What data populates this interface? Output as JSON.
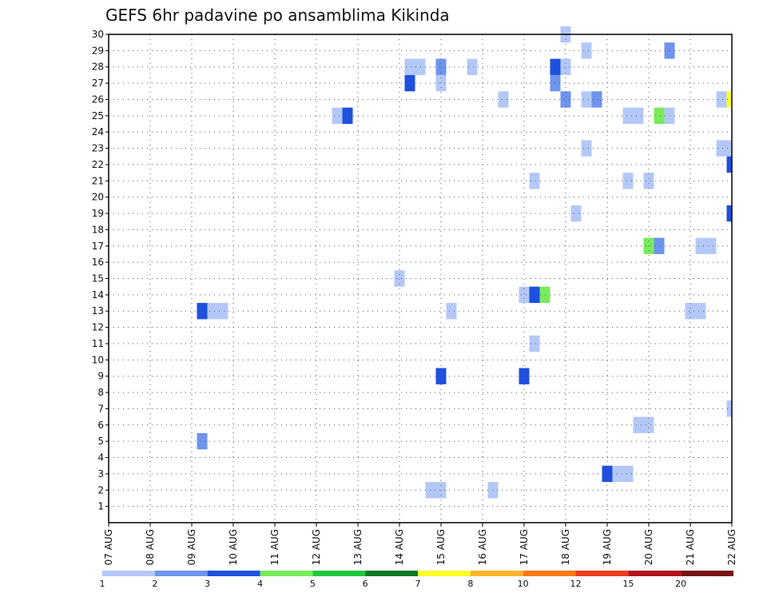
{
  "chart_data": {
    "type": "heatmap",
    "title": "GEFS 6hr padavine po ansamblima Kikinda",
    "xlabel": "",
    "ylabel": "",
    "x_ticks": [
      "07 AUG",
      "08 AUG",
      "09 AUG",
      "10 AUG",
      "11 AUG",
      "12 AUG",
      "13 AUG",
      "14 AUG",
      "15 AUG",
      "16 AUG",
      "17 AUG",
      "18 AUG",
      "19 AUG",
      "20 AUG",
      "21 AUG",
      "22 AUG"
    ],
    "xlim": [
      0,
      15
    ],
    "y_ticks": [
      1,
      2,
      3,
      4,
      5,
      6,
      7,
      8,
      9,
      10,
      11,
      12,
      13,
      14,
      15,
      16,
      17,
      18,
      19,
      20,
      21,
      22,
      23,
      24,
      25,
      26,
      27,
      28,
      29,
      30
    ],
    "ylim": [
      0,
      30
    ],
    "grid": true,
    "legend_position": "bottom",
    "color_scale": {
      "labels": [
        "1",
        "2",
        "3",
        "4",
        "5",
        "6",
        "7",
        "8",
        "10",
        "12",
        "15",
        "20"
      ],
      "colors": [
        "#b4c8f8",
        "#6e94ee",
        "#1e50e0",
        "#78eb5a",
        "#1ec83c",
        "#0f7823",
        "#ffff28",
        "#ffb428",
        "#ff7814",
        "#f03c1e",
        "#b4141e",
        "#781414"
      ]
    },
    "cells": [
      {
        "t": 11.0,
        "m": 30,
        "l": 0
      },
      {
        "t": 11.5,
        "m": 29,
        "l": 0
      },
      {
        "t": 13.5,
        "m": 29,
        "l": 1
      },
      {
        "t": 7.25,
        "m": 28,
        "l": 0
      },
      {
        "t": 7.5,
        "m": 28,
        "l": 0
      },
      {
        "t": 8.0,
        "m": 28,
        "l": 1
      },
      {
        "t": 8.75,
        "m": 28,
        "l": 0
      },
      {
        "t": 10.75,
        "m": 28,
        "l": 2
      },
      {
        "t": 11.0,
        "m": 28,
        "l": 0
      },
      {
        "t": 7.25,
        "m": 27,
        "l": 2
      },
      {
        "t": 8.0,
        "m": 27,
        "l": 0
      },
      {
        "t": 10.75,
        "m": 27,
        "l": 1
      },
      {
        "t": 9.5,
        "m": 26,
        "l": 0
      },
      {
        "t": 11.0,
        "m": 26,
        "l": 1
      },
      {
        "t": 11.5,
        "m": 26,
        "l": 0
      },
      {
        "t": 11.75,
        "m": 26,
        "l": 1
      },
      {
        "t": 14.75,
        "m": 26,
        "l": 0
      },
      {
        "t": 15.0,
        "m": 26,
        "l": 6
      },
      {
        "t": 5.5,
        "m": 25,
        "l": 0
      },
      {
        "t": 5.75,
        "m": 25,
        "l": 2
      },
      {
        "t": 12.5,
        "m": 25,
        "l": 0
      },
      {
        "t": 12.75,
        "m": 25,
        "l": 0
      },
      {
        "t": 13.25,
        "m": 25,
        "l": 3
      },
      {
        "t": 13.5,
        "m": 25,
        "l": 0
      },
      {
        "t": 11.5,
        "m": 23,
        "l": 0
      },
      {
        "t": 14.75,
        "m": 23,
        "l": 0
      },
      {
        "t": 15.0,
        "m": 23,
        "l": 0
      },
      {
        "t": 15.0,
        "m": 22,
        "l": 2
      },
      {
        "t": 10.25,
        "m": 21,
        "l": 0
      },
      {
        "t": 12.5,
        "m": 21,
        "l": 0
      },
      {
        "t": 13.0,
        "m": 21,
        "l": 0
      },
      {
        "t": 11.25,
        "m": 19,
        "l": 0
      },
      {
        "t": 15.0,
        "m": 19,
        "l": 2
      },
      {
        "t": 13.0,
        "m": 17,
        "l": 3
      },
      {
        "t": 13.25,
        "m": 17,
        "l": 1
      },
      {
        "t": 14.25,
        "m": 17,
        "l": 0
      },
      {
        "t": 14.5,
        "m": 17,
        "l": 0
      },
      {
        "t": 7.0,
        "m": 15,
        "l": 0
      },
      {
        "t": 10.0,
        "m": 14,
        "l": 0
      },
      {
        "t": 10.25,
        "m": 14,
        "l": 2
      },
      {
        "t": 10.5,
        "m": 14,
        "l": 3
      },
      {
        "t": 14.0,
        "m": 13,
        "l": 0
      },
      {
        "t": 14.25,
        "m": 13,
        "l": 0
      },
      {
        "t": 2.25,
        "m": 13,
        "l": 2
      },
      {
        "t": 2.5,
        "m": 13,
        "l": 0
      },
      {
        "t": 2.75,
        "m": 13,
        "l": 0
      },
      {
        "t": 8.25,
        "m": 13,
        "l": 0
      },
      {
        "t": 10.25,
        "m": 11,
        "l": 0
      },
      {
        "t": 8.0,
        "m": 9,
        "l": 2
      },
      {
        "t": 10.0,
        "m": 9,
        "l": 2
      },
      {
        "t": 15.0,
        "m": 7,
        "l": 0
      },
      {
        "t": 12.75,
        "m": 6,
        "l": 0
      },
      {
        "t": 13.0,
        "m": 6,
        "l": 0
      },
      {
        "t": 2.25,
        "m": 5,
        "l": 1
      },
      {
        "t": 12.0,
        "m": 3,
        "l": 2
      },
      {
        "t": 12.25,
        "m": 3,
        "l": 0
      },
      {
        "t": 12.5,
        "m": 3,
        "l": 0
      },
      {
        "t": 7.75,
        "m": 2,
        "l": 0
      },
      {
        "t": 8.0,
        "m": 2,
        "l": 0
      },
      {
        "t": 9.25,
        "m": 2,
        "l": 0
      }
    ]
  }
}
